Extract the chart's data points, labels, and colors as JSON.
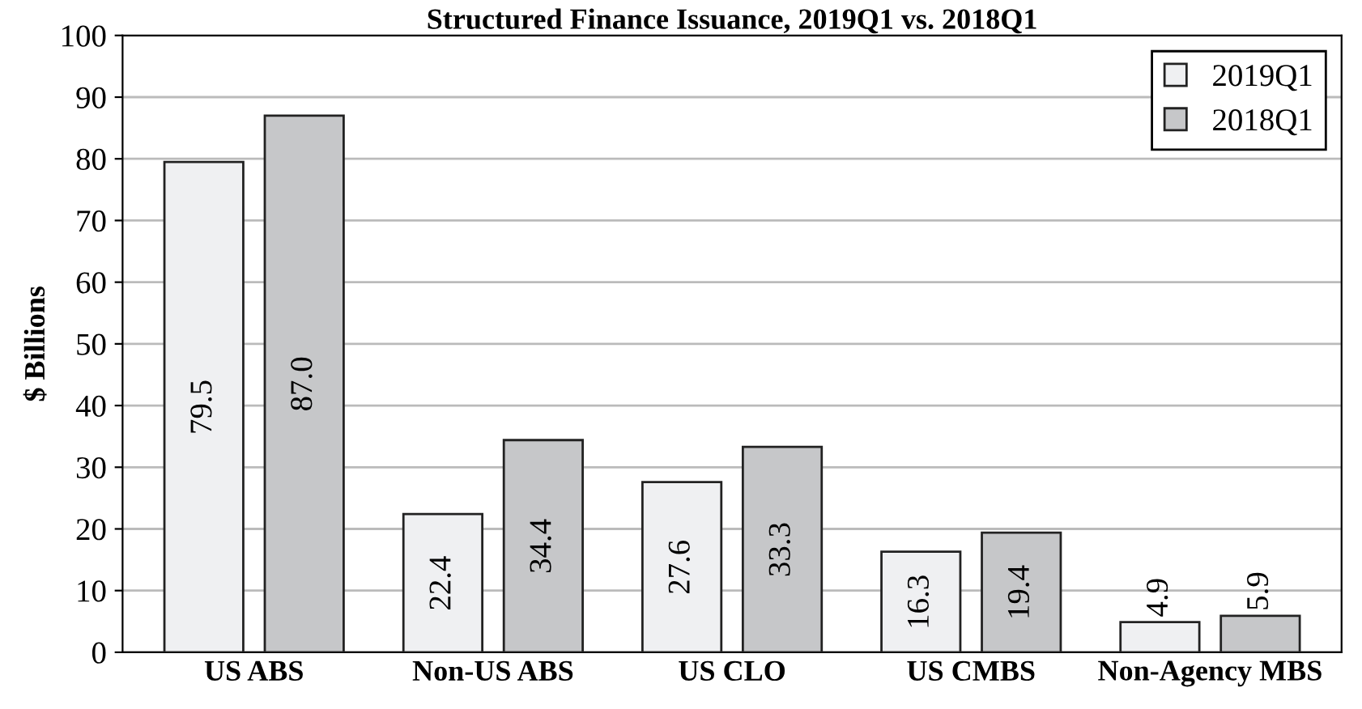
{
  "chart_data": {
    "type": "bar",
    "title": "Structured Finance Issuance, 2019Q1 vs. 2018Q1",
    "ylabel": "$ Billions",
    "categories": [
      "US ABS",
      "Non-US ABS",
      "US CLO",
      "US CMBS",
      "Non-Agency MBS"
    ],
    "series": [
      {
        "name": "2019Q1",
        "color": "#eff0f2",
        "values": [
          79.5,
          22.4,
          27.6,
          16.3,
          4.9
        ],
        "value_labels": [
          "79.5",
          "22.4",
          "27.6",
          "16.3",
          "4.9"
        ]
      },
      {
        "name": "2018Q1",
        "color": "#c6c7c9",
        "values": [
          87.0,
          34.4,
          33.3,
          19.4,
          5.9
        ],
        "value_labels": [
          "87.0",
          "34.4",
          "33.3",
          "19.4",
          "5.9"
        ]
      }
    ],
    "ylim": [
      0,
      100
    ],
    "yticks": [
      0,
      10,
      20,
      30,
      40,
      50,
      60,
      70,
      80,
      90,
      100
    ],
    "grid": "y",
    "legend": "top right"
  }
}
